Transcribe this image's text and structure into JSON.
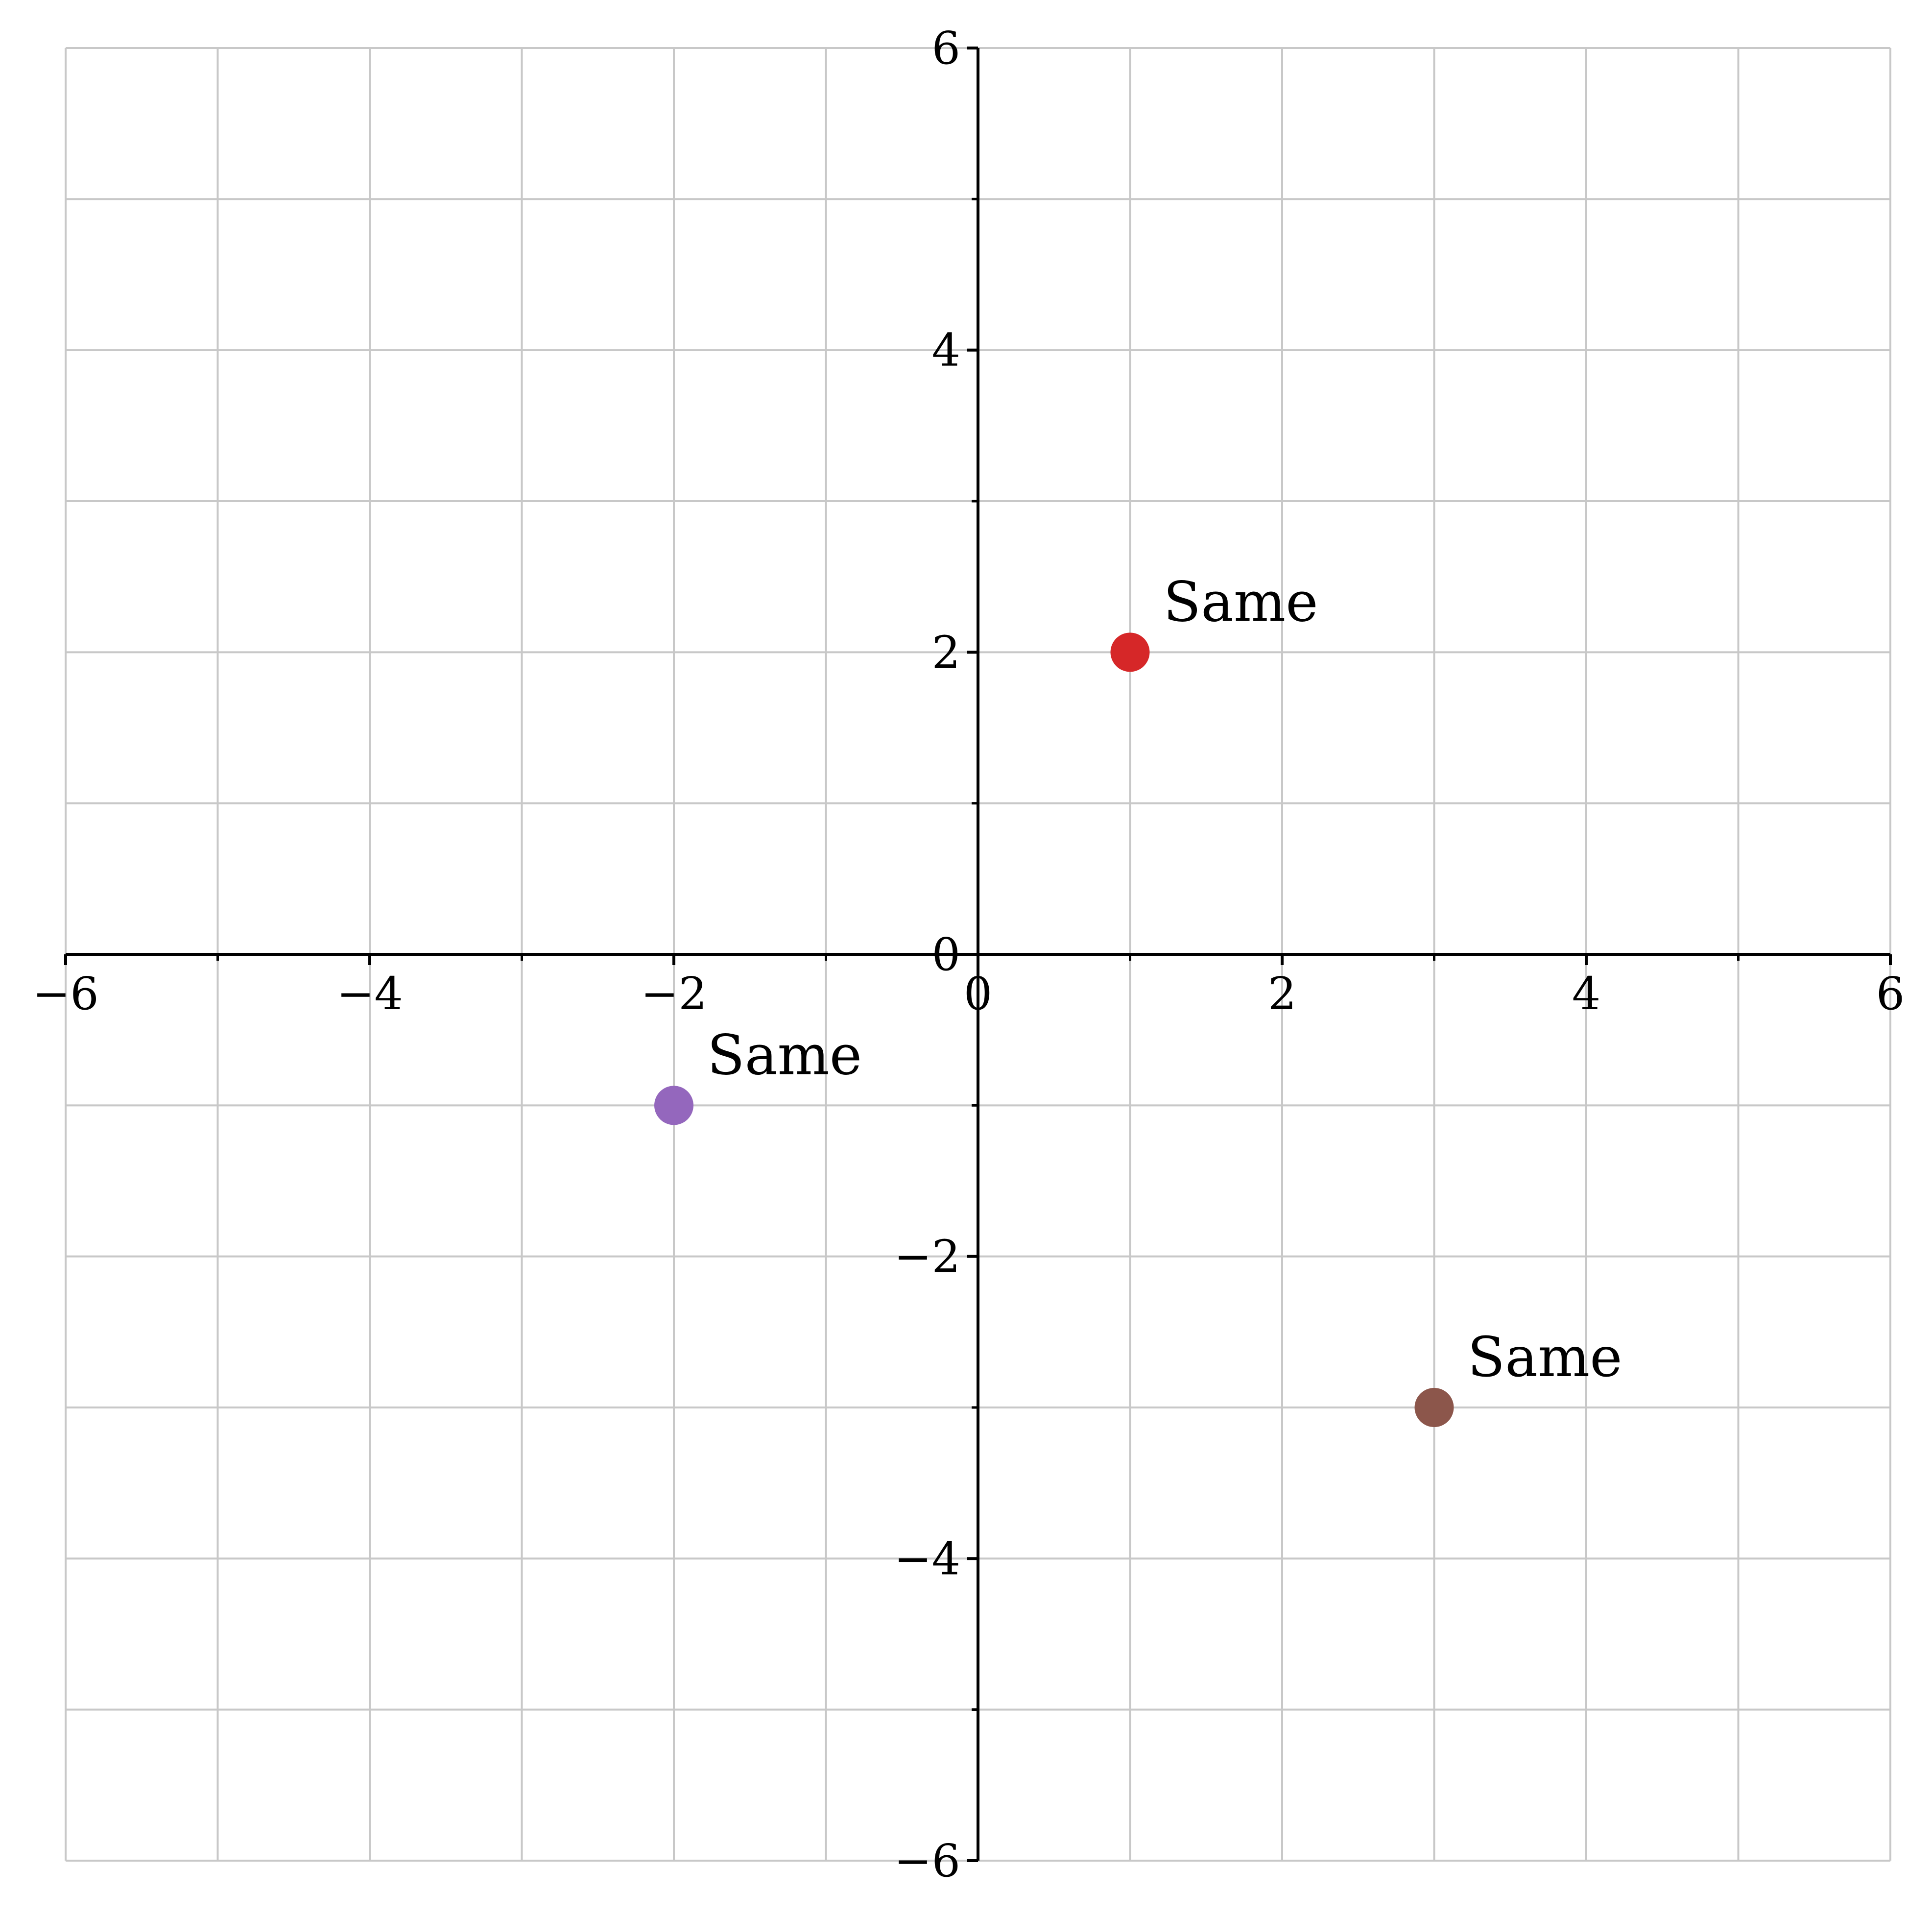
{
  "chart_data": {
    "type": "scatter",
    "title": "",
    "xlabel": "",
    "ylabel": "",
    "xlim": [
      -6,
      6
    ],
    "ylim": [
      -6,
      6
    ],
    "grid": true,
    "spines": "centered",
    "major_ticks": [
      -6,
      -4,
      -2,
      0,
      2,
      4,
      6
    ],
    "minor_ticks": [
      -5,
      -3,
      -1,
      1,
      3,
      5
    ],
    "x_tick_labels": [
      "−6",
      "−4",
      "−2",
      "0",
      "2",
      "4",
      "6"
    ],
    "y_tick_labels": [
      "−6",
      "−4",
      "−2",
      "0",
      "2",
      "4",
      "6"
    ],
    "points": [
      {
        "x": 1,
        "y": 2,
        "label": "Same",
        "color": "#d62728"
      },
      {
        "x": -2,
        "y": -1,
        "label": "Same",
        "color": "#9467bd"
      },
      {
        "x": 3,
        "y": -3,
        "label": "Same",
        "color": "#8c564b"
      }
    ],
    "grid_color": "#c8c8c8",
    "axis_color": "#000000"
  }
}
